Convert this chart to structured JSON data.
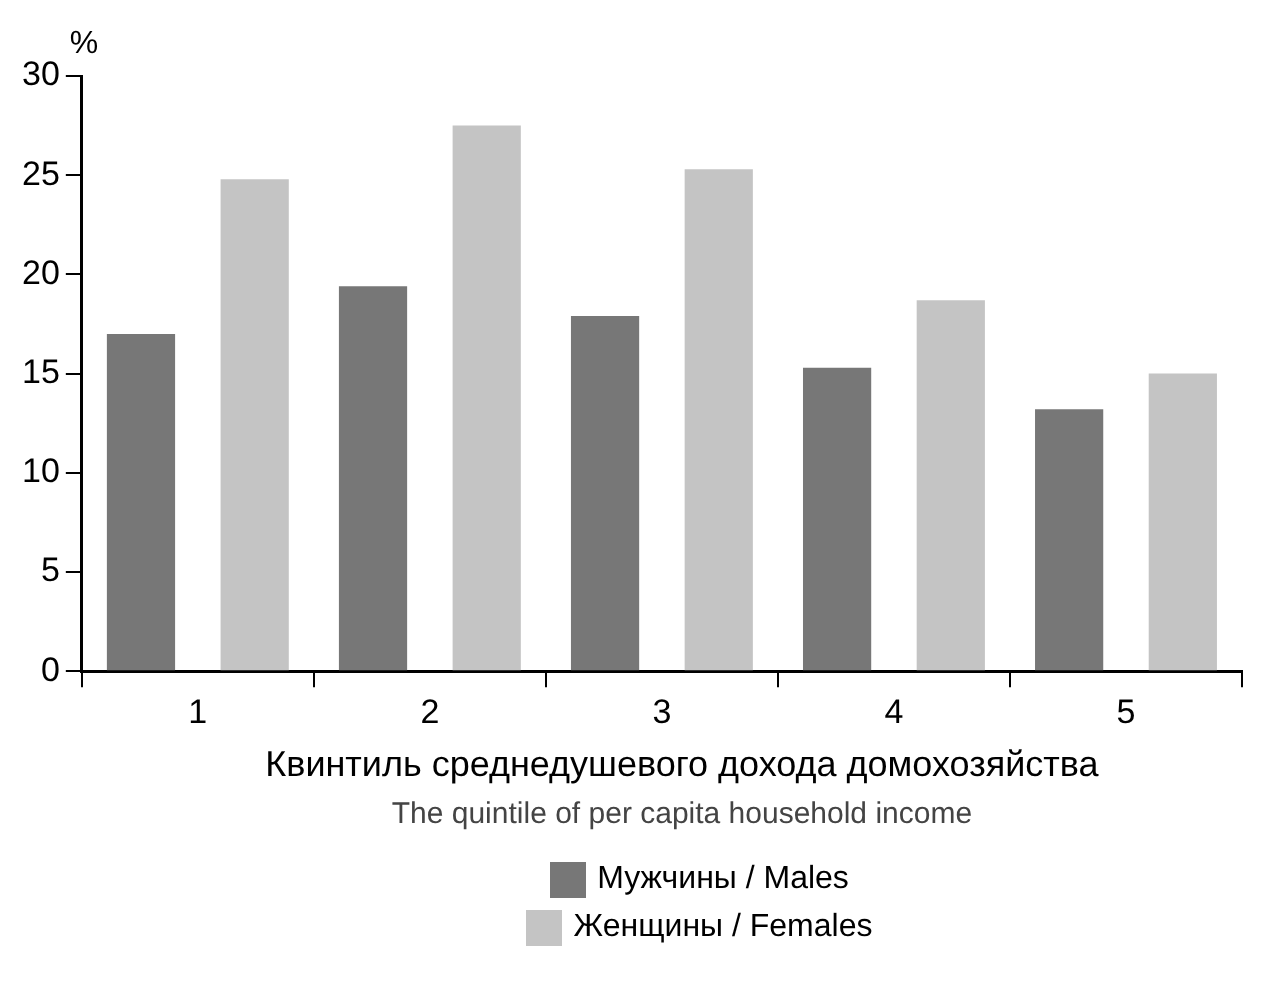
{
  "chart_data": {
    "type": "bar",
    "ylabel": "%",
    "xlabel": "Квинтиль среднедушевого дохода домохозяйства\nThe quintile of per capita household income",
    "categories": [
      "1",
      "2",
      "3",
      "4",
      "5"
    ],
    "series": [
      {
        "name": "Мужчины / Males",
        "color": "#777777",
        "values": [
          17.0,
          19.4,
          17.9,
          15.3,
          13.2
        ]
      },
      {
        "name": "Женщины / Females",
        "color": "#c4c4c4",
        "values": [
          24.8,
          27.5,
          25.3,
          18.7,
          15.0
        ]
      }
    ],
    "ylim": [
      0,
      30
    ],
    "yticks": [
      0,
      5,
      10,
      15,
      20,
      25,
      30
    ],
    "grid": false,
    "legend": "bottom"
  }
}
